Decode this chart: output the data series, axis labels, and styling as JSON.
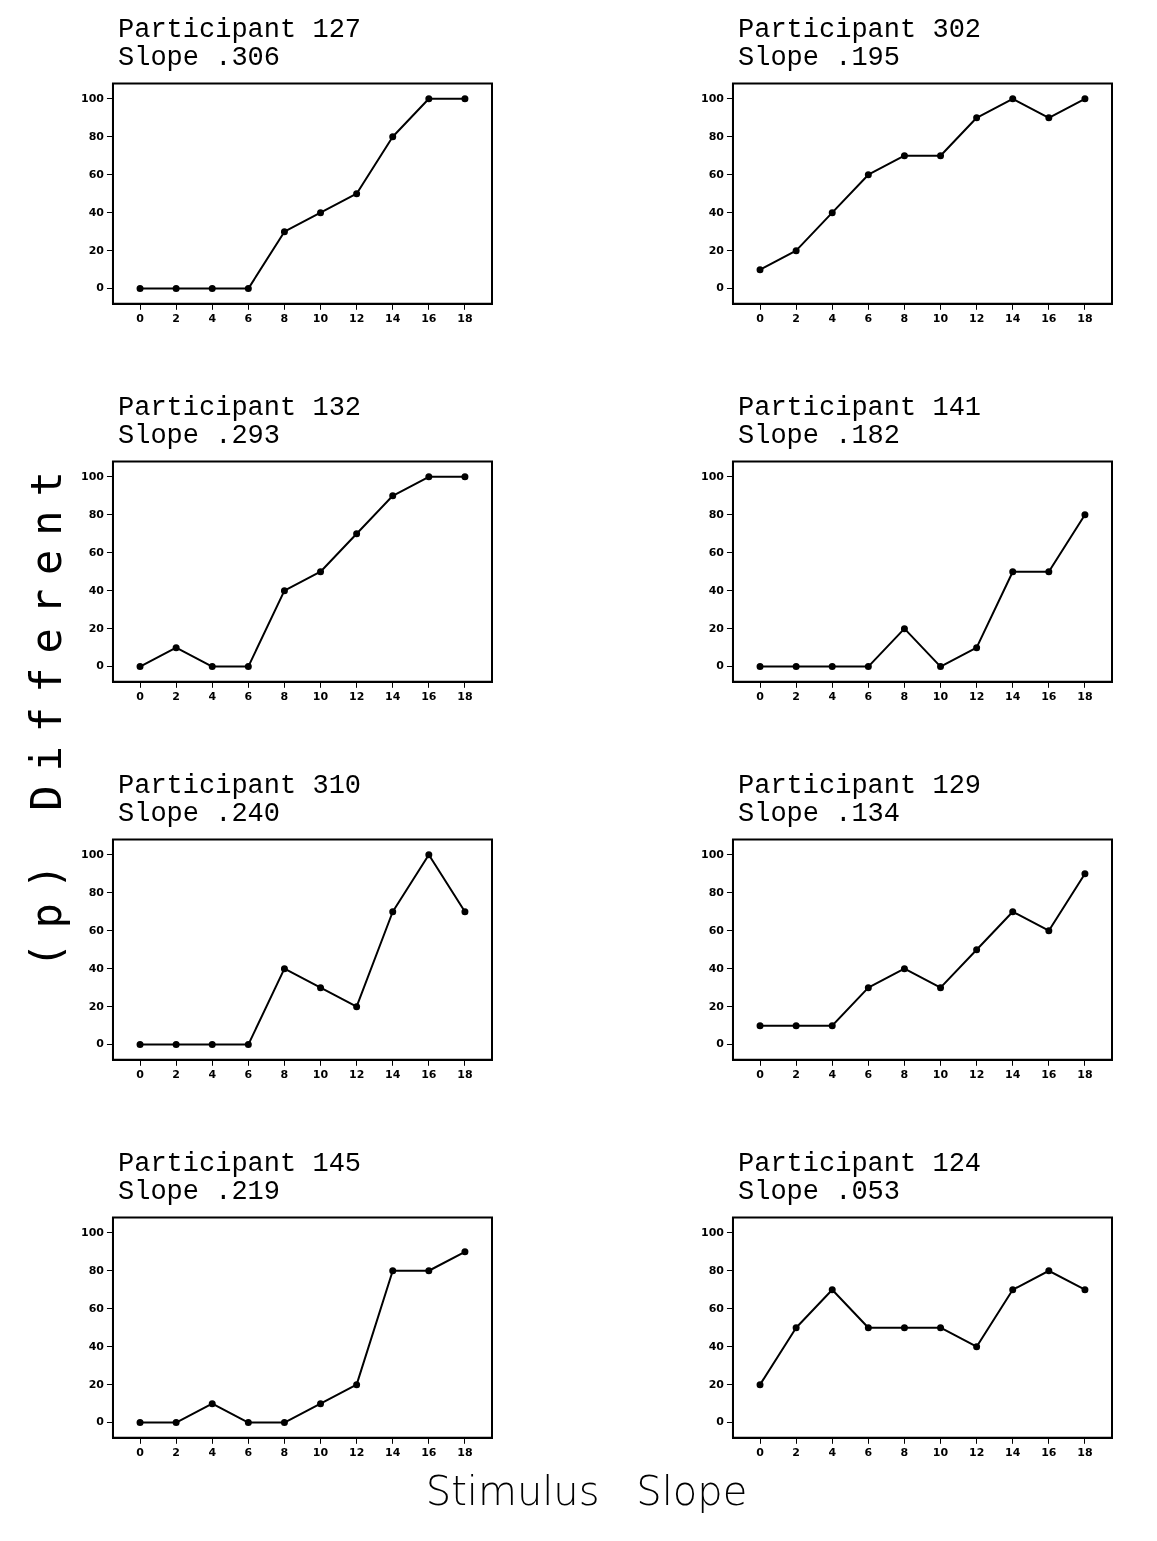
{
  "chart_data": [
    {
      "type": "line",
      "title": "Participant 127",
      "subtitle": "Slope .306",
      "ylabel": "(p) Different",
      "x": [
        0,
        2,
        4,
        6,
        8,
        10,
        12,
        14,
        16,
        18
      ],
      "values": [
        0,
        0,
        0,
        0,
        30,
        40,
        50,
        80,
        100,
        100
      ],
      "color": "#000000",
      "xlim": [
        -1.5,
        19.5
      ],
      "ylim": [
        -8,
        108
      ],
      "xticks": [
        0,
        2,
        4,
        6,
        8,
        10,
        12,
        14,
        16,
        18
      ],
      "yticks": [
        0,
        20,
        40,
        60,
        80,
        100
      ],
      "grid": false,
      "marker": "circle",
      "line_style": "solid"
    },
    {
      "type": "line",
      "title": "Participant 302",
      "subtitle": "Slope .195",
      "x": [
        0,
        2,
        4,
        6,
        8,
        10,
        12,
        14,
        16,
        18
      ],
      "values": [
        10,
        20,
        40,
        60,
        70,
        70,
        90,
        100,
        90,
        100
      ],
      "color": "#000000",
      "xlim": [
        -1.5,
        19.5
      ],
      "ylim": [
        -8,
        108
      ],
      "xticks": [
        0,
        2,
        4,
        6,
        8,
        10,
        12,
        14,
        16,
        18
      ],
      "yticks": [
        0,
        20,
        40,
        60,
        80,
        100
      ],
      "grid": false,
      "marker": "circle",
      "line_style": "solid"
    },
    {
      "type": "line",
      "title": "Participant 132",
      "subtitle": "Slope .293",
      "x": [
        0,
        2,
        4,
        6,
        8,
        10,
        12,
        14,
        16,
        18
      ],
      "values": [
        0,
        10,
        0,
        0,
        40,
        50,
        70,
        90,
        100,
        100
      ],
      "color": "#000000",
      "xlim": [
        -1.5,
        19.5
      ],
      "ylim": [
        -8,
        108
      ],
      "xticks": [
        0,
        2,
        4,
        6,
        8,
        10,
        12,
        14,
        16,
        18
      ],
      "yticks": [
        0,
        20,
        40,
        60,
        80,
        100
      ],
      "grid": false,
      "marker": "circle",
      "line_style": "solid"
    },
    {
      "type": "line",
      "title": "Participant 141",
      "subtitle": "Slope .182",
      "x": [
        0,
        2,
        4,
        6,
        8,
        10,
        12,
        14,
        16,
        18
      ],
      "values": [
        0,
        0,
        0,
        0,
        20,
        0,
        10,
        50,
        50,
        80
      ],
      "color": "#000000",
      "xlim": [
        -1.5,
        19.5
      ],
      "ylim": [
        -8,
        108
      ],
      "xticks": [
        0,
        2,
        4,
        6,
        8,
        10,
        12,
        14,
        16,
        18
      ],
      "yticks": [
        0,
        20,
        40,
        60,
        80,
        100
      ],
      "grid": false,
      "marker": "circle",
      "line_style": "solid"
    },
    {
      "type": "line",
      "title": "Participant 310",
      "subtitle": "Slope .240",
      "x": [
        0,
        2,
        4,
        6,
        8,
        10,
        12,
        14,
        16,
        18
      ],
      "values": [
        0,
        0,
        0,
        0,
        40,
        30,
        20,
        70,
        100,
        70
      ],
      "color": "#000000",
      "xlim": [
        -1.5,
        19.5
      ],
      "ylim": [
        -8,
        108
      ],
      "xticks": [
        0,
        2,
        4,
        6,
        8,
        10,
        12,
        14,
        16,
        18
      ],
      "yticks": [
        0,
        20,
        40,
        60,
        80,
        100
      ],
      "grid": false,
      "marker": "circle",
      "line_style": "solid"
    },
    {
      "type": "line",
      "title": "Participant 129",
      "subtitle": "Slope .134",
      "x": [
        0,
        2,
        4,
        6,
        8,
        10,
        12,
        14,
        16,
        18
      ],
      "values": [
        10,
        10,
        10,
        30,
        40,
        30,
        50,
        70,
        60,
        90
      ],
      "color": "#000000",
      "xlim": [
        -1.5,
        19.5
      ],
      "ylim": [
        -8,
        108
      ],
      "xticks": [
        0,
        2,
        4,
        6,
        8,
        10,
        12,
        14,
        16,
        18
      ],
      "yticks": [
        0,
        20,
        40,
        60,
        80,
        100
      ],
      "grid": false,
      "marker": "circle",
      "line_style": "solid"
    },
    {
      "type": "line",
      "title": "Participant 145",
      "subtitle": "Slope .219",
      "xlabel": "Stimulus Slope",
      "x": [
        0,
        2,
        4,
        6,
        8,
        10,
        12,
        14,
        16,
        18
      ],
      "values": [
        0,
        0,
        10,
        0,
        0,
        10,
        20,
        80,
        80,
        90
      ],
      "color": "#000000",
      "xlim": [
        -1.5,
        19.5
      ],
      "ylim": [
        -8,
        108
      ],
      "xticks": [
        0,
        2,
        4,
        6,
        8,
        10,
        12,
        14,
        16,
        18
      ],
      "yticks": [
        0,
        20,
        40,
        60,
        80,
        100
      ],
      "grid": false,
      "marker": "circle",
      "line_style": "solid"
    },
    {
      "type": "line",
      "title": "Participant 124",
      "subtitle": "Slope .053",
      "x": [
        0,
        2,
        4,
        6,
        8,
        10,
        12,
        14,
        16,
        18
      ],
      "values": [
        20,
        50,
        70,
        50,
        50,
        50,
        40,
        70,
        80,
        70
      ],
      "color": "#000000",
      "xlim": [
        -1.5,
        19.5
      ],
      "ylim": [
        -8,
        108
      ],
      "xticks": [
        0,
        2,
        4,
        6,
        8,
        10,
        12,
        14,
        16,
        18
      ],
      "yticks": [
        0,
        20,
        40,
        60,
        80,
        100
      ],
      "grid": false,
      "marker": "circle",
      "line_style": "solid"
    }
  ]
}
